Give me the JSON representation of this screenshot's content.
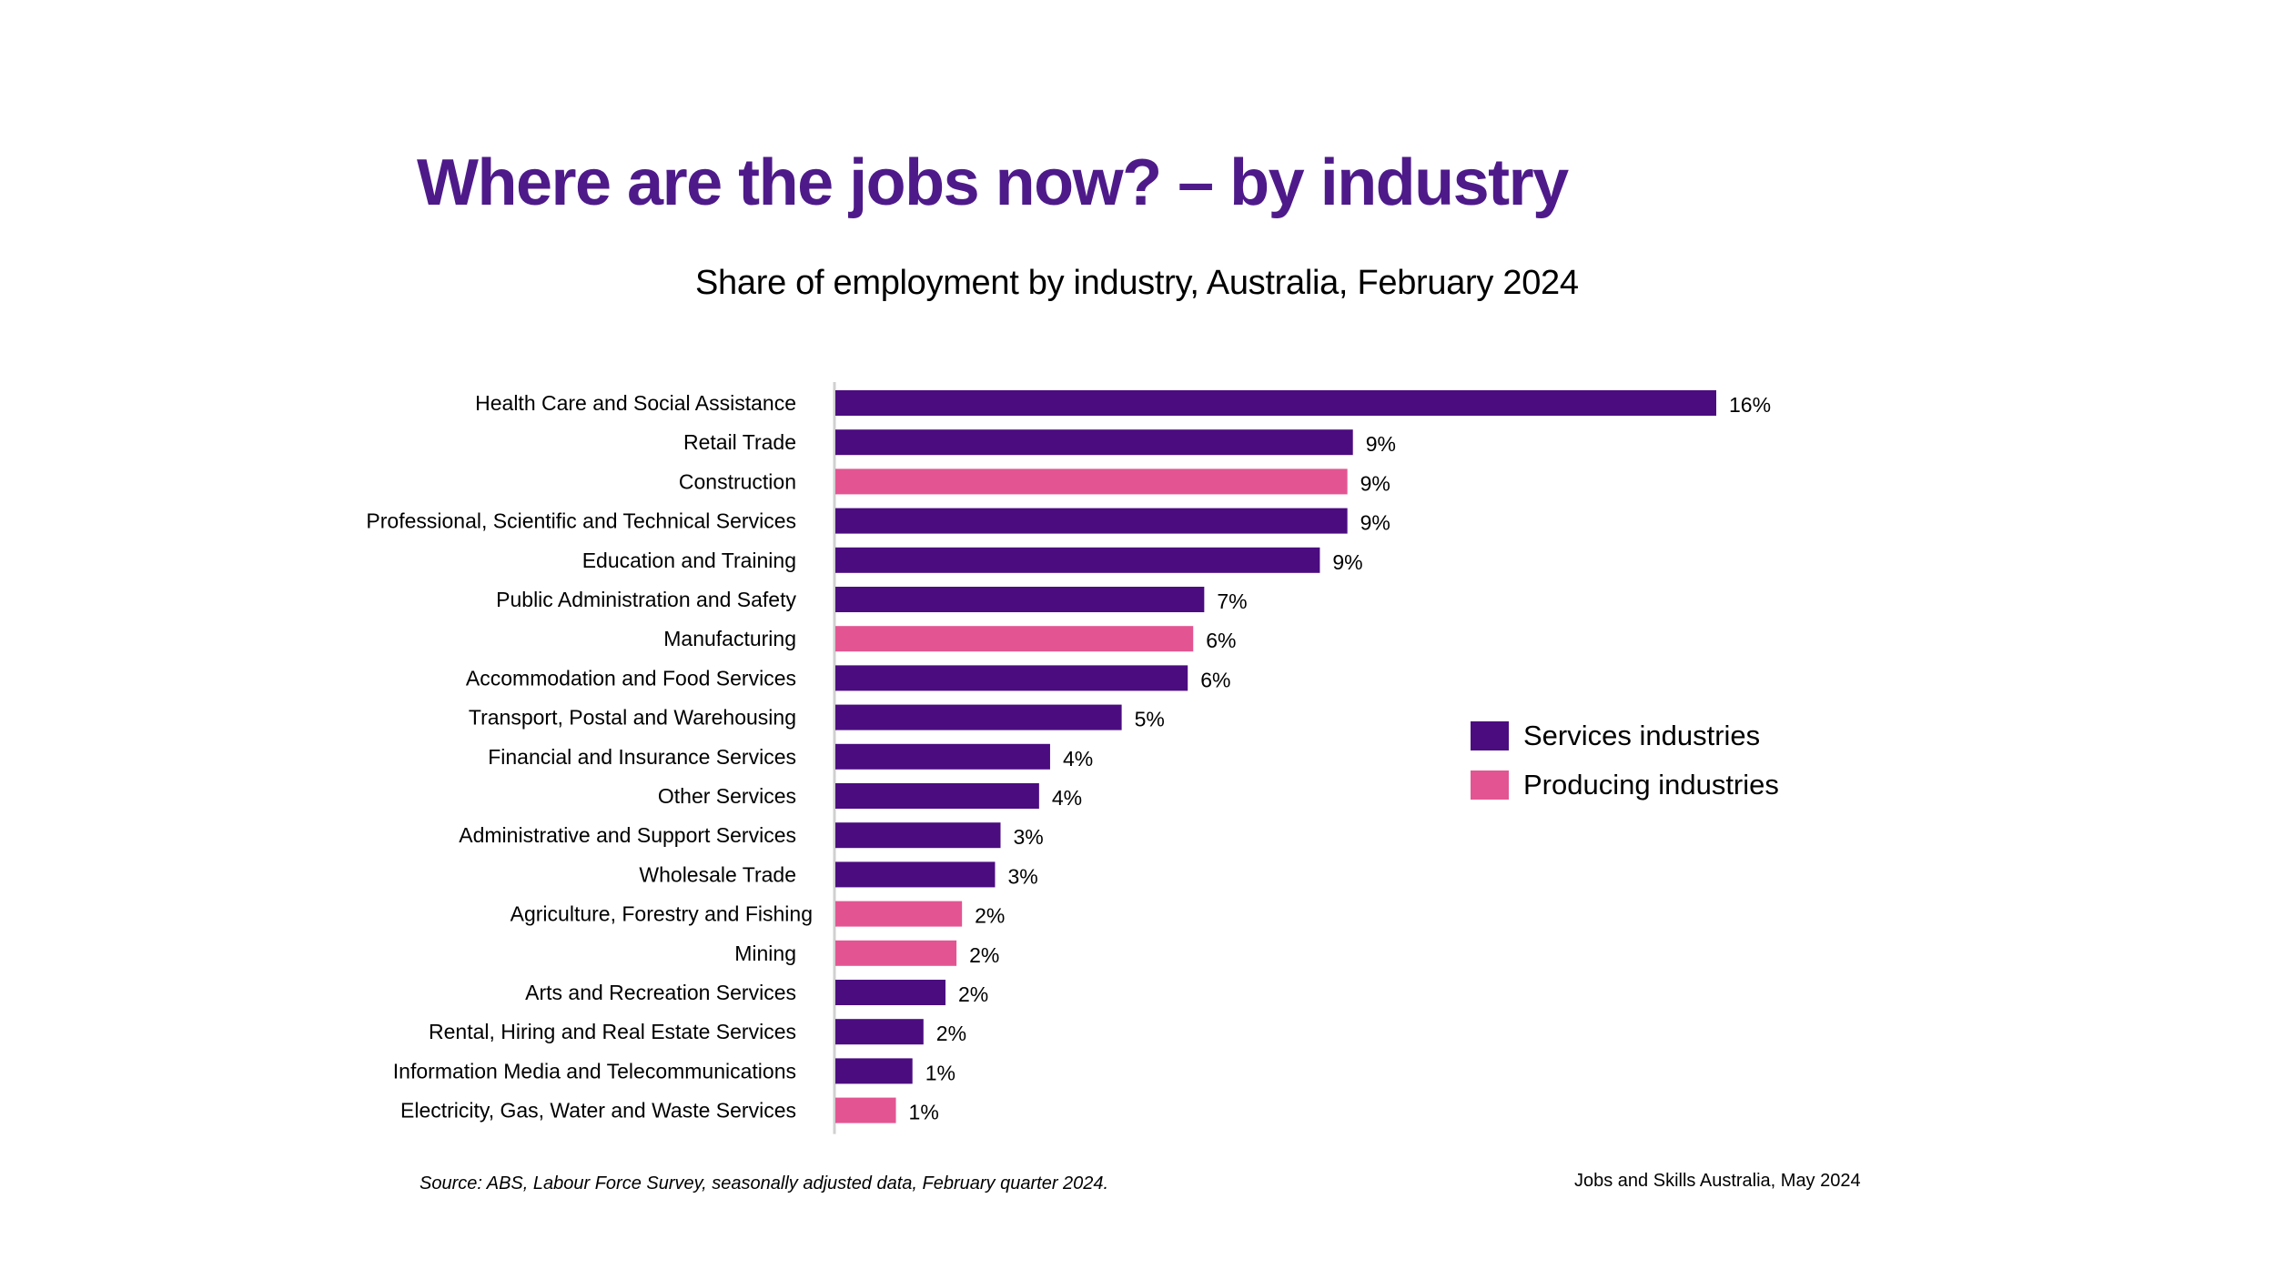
{
  "page": {
    "title": "Where are the jobs now? – by industry",
    "source": "Source: ABS, Labour Force Survey, seasonally adjusted data, February quarter 2024.",
    "credit": "Jobs and Skills Australia, May 2024"
  },
  "colors": {
    "services": "#4B0C80",
    "producing": "#E35592",
    "title": "#4E1A8A"
  },
  "chart_data": {
    "type": "bar",
    "orientation": "horizontal",
    "title": "Share of employment by industry, Australia, February 2024",
    "xlabel": "",
    "ylabel": "",
    "xlim": [
      0,
      16.4
    ],
    "grid": false,
    "legend_position": "right",
    "unit": "%",
    "legend": [
      {
        "name": "Services industries",
        "group": "services"
      },
      {
        "name": "Producing industries",
        "group": "producing"
      }
    ],
    "categories": [
      "Health Care and Social Assistance",
      "Retail Trade",
      "Construction",
      "Professional, Scientific and Technical Services",
      "Education and Training",
      "Public Administration and Safety",
      "Manufacturing",
      "Accommodation and Food Services",
      "Transport, Postal and Warehousing",
      "Financial and Insurance Services",
      "Other Services",
      "Administrative and Support Services",
      "Wholesale Trade",
      "Agriculture, Forestry and Fishing",
      "Mining",
      "Arts and Recreation Services",
      "Rental, Hiring and Real Estate Services",
      "Information Media and Telecommunications",
      "Electricity, Gas, Water and Waste Services"
    ],
    "values": [
      16.0,
      9.4,
      9.3,
      9.3,
      8.8,
      6.7,
      6.5,
      6.4,
      5.2,
      3.9,
      3.7,
      3.0,
      2.9,
      2.3,
      2.2,
      2.0,
      1.6,
      1.4,
      1.1
    ],
    "value_labels": [
      "16%",
      "9%",
      "9%",
      "9%",
      "9%",
      "7%",
      "6%",
      "6%",
      "5%",
      "4%",
      "4%",
      "3%",
      "3%",
      "2%",
      "2%",
      "2%",
      "2%",
      "1%",
      "1%"
    ],
    "groups": [
      "services",
      "services",
      "producing",
      "services",
      "services",
      "services",
      "producing",
      "services",
      "services",
      "services",
      "services",
      "services",
      "services",
      "producing",
      "producing",
      "services",
      "services",
      "services",
      "producing"
    ]
  }
}
